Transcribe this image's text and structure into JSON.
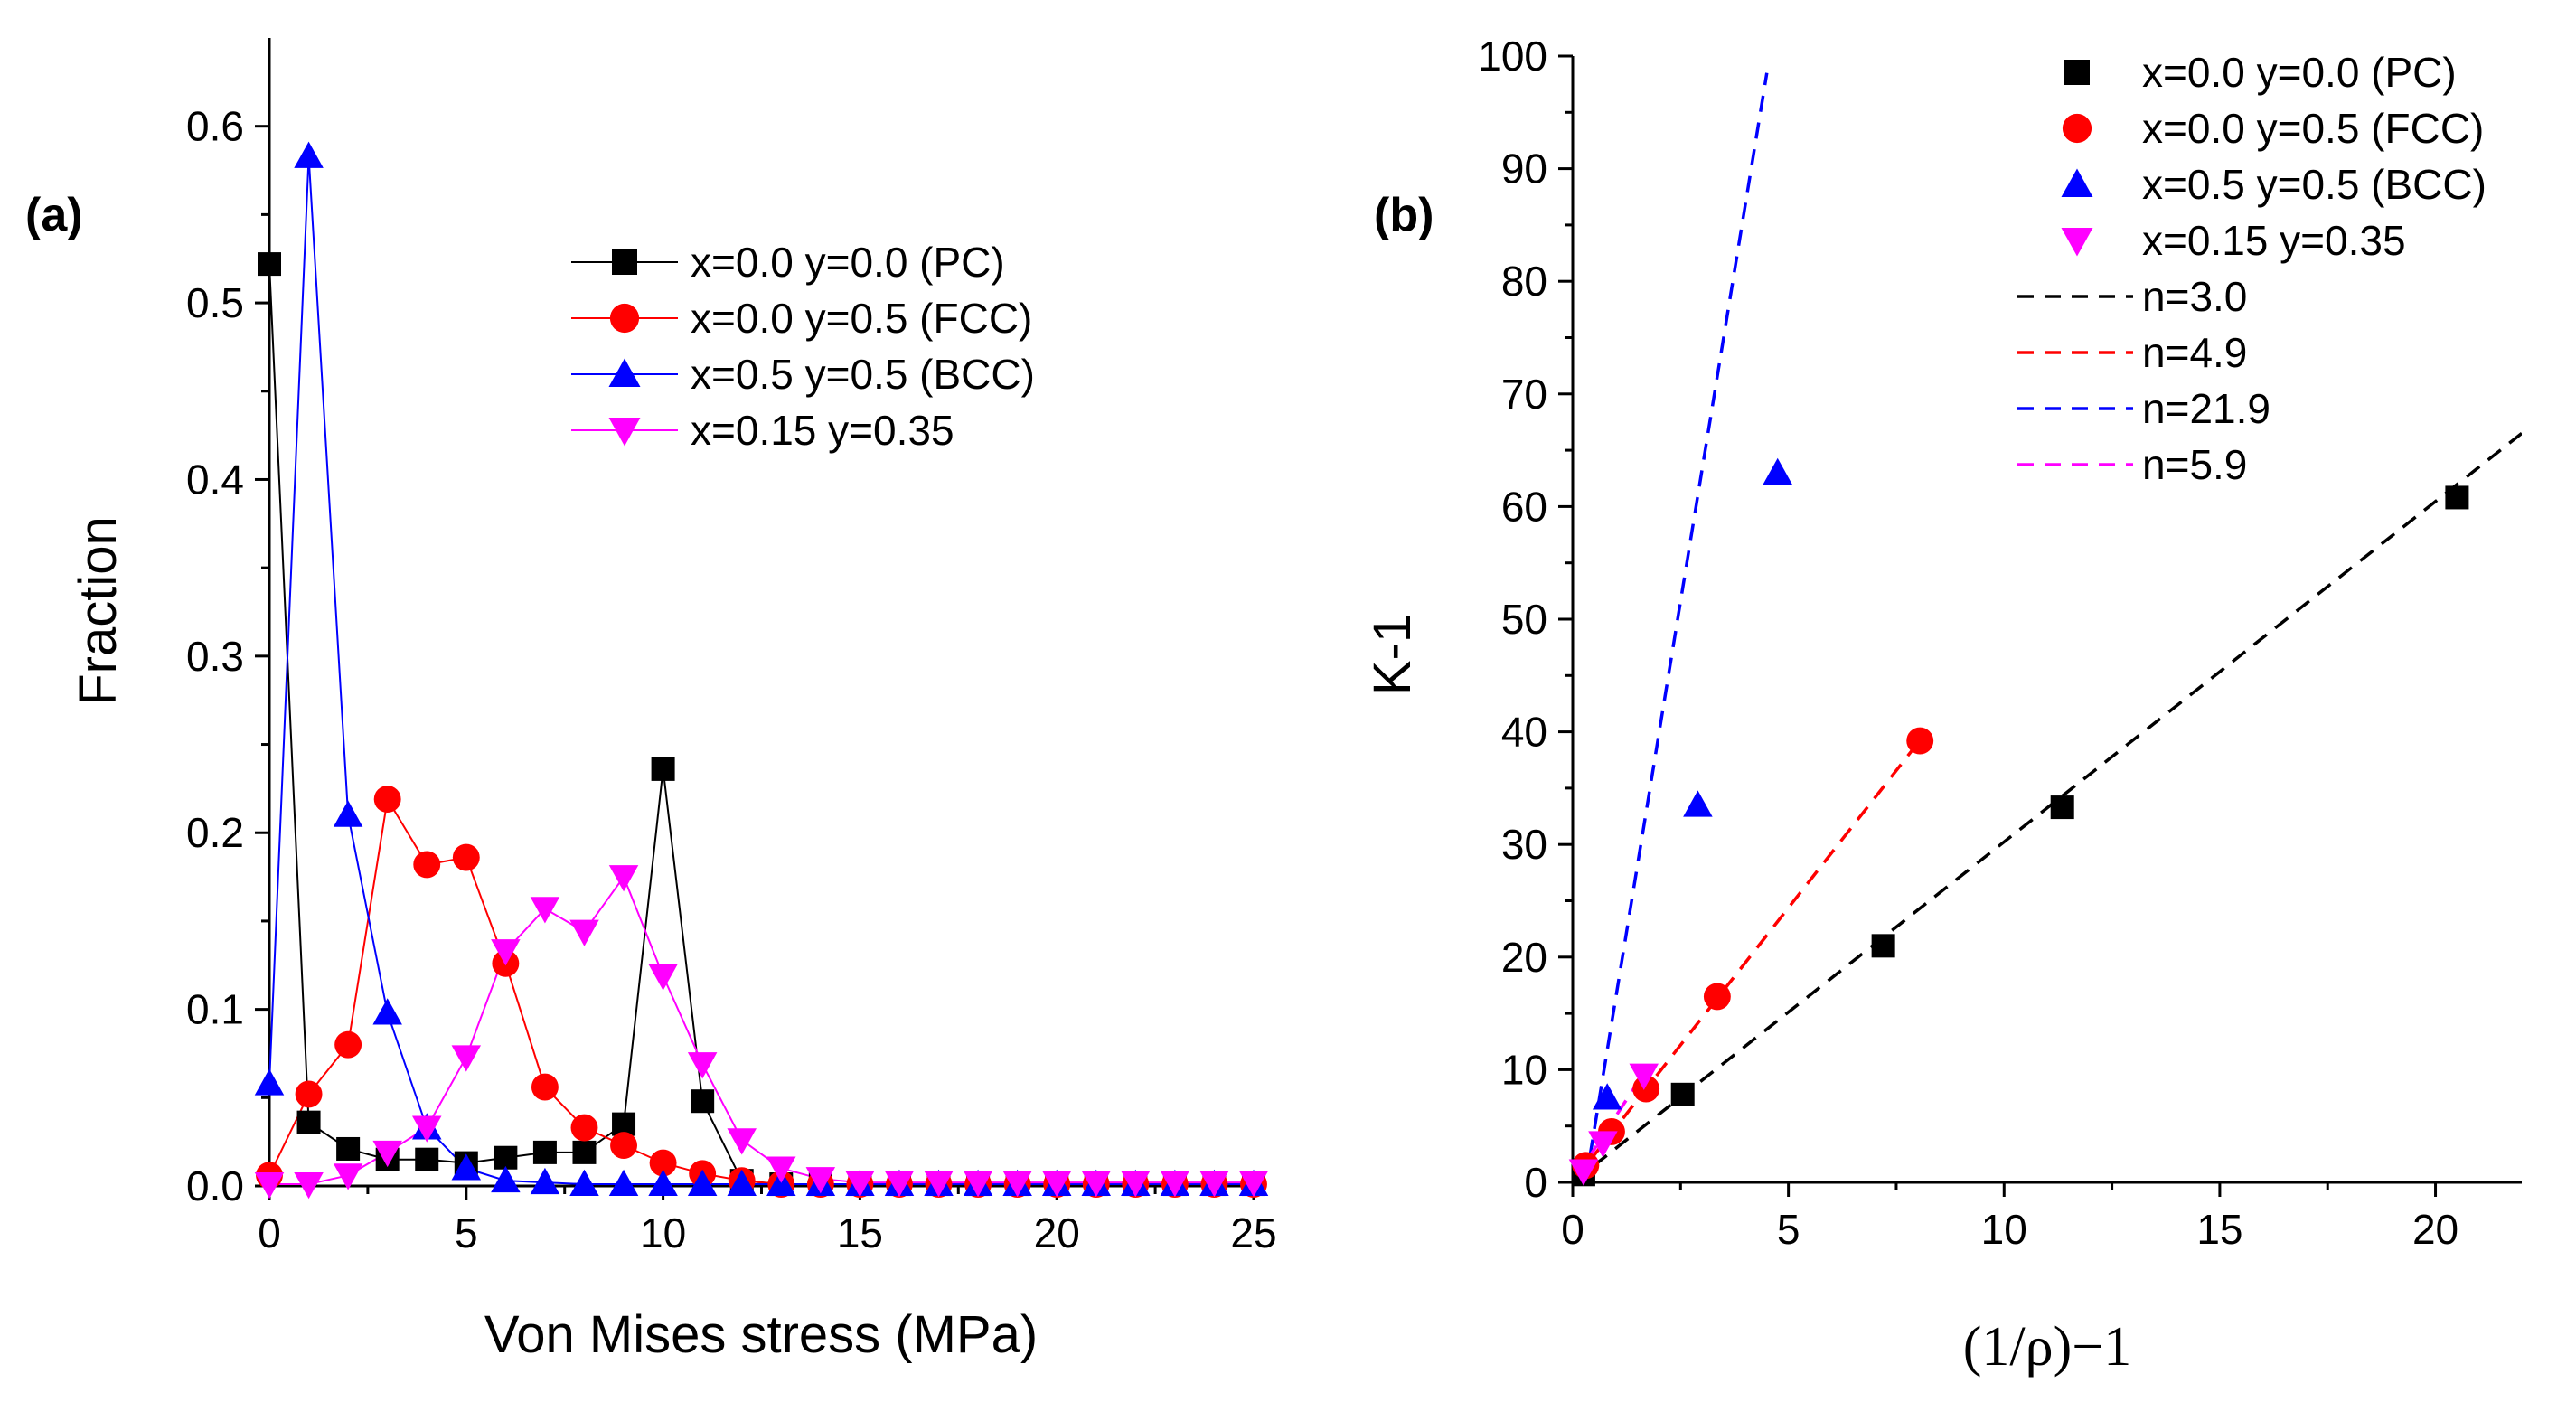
{
  "chart_data": [
    {
      "type": "line",
      "panel_label": "(a)",
      "title": "",
      "xlabel": "Von Mises stress (MPa)",
      "ylabel": "Fraction",
      "xlim": [
        0,
        25
      ],
      "ylim": [
        0,
        0.65
      ],
      "xticks": [
        0,
        5,
        10,
        15,
        20,
        25
      ],
      "yticks": [
        0.0,
        0.1,
        0.2,
        0.3,
        0.4,
        0.5,
        0.6
      ],
      "xtick_labels": [
        "0",
        "5",
        "10",
        "15",
        "20",
        "25"
      ],
      "ytick_labels": [
        "0.0",
        "0.1",
        "0.2",
        "0.3",
        "0.4",
        "0.5",
        "0.6"
      ],
      "legend_position": "top-right",
      "x": [
        0,
        1,
        2,
        3,
        4,
        5,
        6,
        7,
        8,
        9,
        10,
        11,
        12,
        13,
        14,
        15,
        16,
        17,
        18,
        19,
        20,
        21,
        22,
        23,
        24,
        25
      ],
      "series": [
        {
          "name": "x=0.0 y=0.0 (PC)",
          "color": "#000000",
          "marker": "square",
          "values": [
            0.522,
            0.036,
            0.021,
            0.015,
            0.015,
            0.013,
            0.016,
            0.019,
            0.019,
            0.035,
            0.236,
            0.048,
            0.003,
            0.001,
            0.001,
            0.001,
            0.001,
            0.001,
            0.001,
            0.001,
            0.001,
            0.001,
            0.001,
            0.001,
            0.001,
            0.001
          ]
        },
        {
          "name": "x=0.0 y=0.5 (FCC)",
          "color": "#ff0000",
          "marker": "circle",
          "values": [
            0.006,
            0.052,
            0.08,
            0.219,
            0.182,
            0.186,
            0.126,
            0.056,
            0.033,
            0.023,
            0.013,
            0.007,
            0.003,
            0.001,
            0.001,
            0.001,
            0.001,
            0.001,
            0.001,
            0.001,
            0.001,
            0.001,
            0.001,
            0.001,
            0.001,
            0.001
          ]
        },
        {
          "name": "x=0.5 y=0.5 (BCC)",
          "color": "#0000ff",
          "marker": "triangle-up",
          "values": [
            0.058,
            0.583,
            0.21,
            0.098,
            0.033,
            0.01,
            0.003,
            0.002,
            0.001,
            0.001,
            0.001,
            0.001,
            0.001,
            0.001,
            0.001,
            0.001,
            0.001,
            0.001,
            0.001,
            0.001,
            0.001,
            0.001,
            0.001,
            0.001,
            0.001,
            0.001
          ]
        },
        {
          "name": "x=0.15 y=0.35",
          "color": "#ff00ff",
          "marker": "triangle-down",
          "values": [
            0.001,
            0.001,
            0.006,
            0.019,
            0.033,
            0.073,
            0.133,
            0.157,
            0.144,
            0.175,
            0.119,
            0.069,
            0.026,
            0.01,
            0.004,
            0.002,
            0.002,
            0.002,
            0.002,
            0.002,
            0.002,
            0.002,
            0.002,
            0.002,
            0.002,
            0.002
          ]
        }
      ]
    },
    {
      "type": "scatter",
      "panel_label": "(b)",
      "title": "",
      "xlabel": "(1/ρ)−1",
      "ylabel": "K-1",
      "xlim": [
        0,
        22
      ],
      "ylim": [
        0,
        100
      ],
      "xticks": [
        0,
        5,
        10,
        15,
        20
      ],
      "yticks": [
        0,
        10,
        20,
        30,
        40,
        50,
        60,
        70,
        80,
        90,
        100
      ],
      "xtick_labels": [
        "0",
        "5",
        "10",
        "15",
        "20"
      ],
      "ytick_labels": [
        "0",
        "10",
        "20",
        "30",
        "40",
        "50",
        "60",
        "70",
        "80",
        "90",
        "100"
      ],
      "legend_position": "top-right",
      "series": [
        {
          "name": "x=0.0 y=0.0 (PC)",
          "color": "#000000",
          "marker": "square",
          "points": [
            [
              0.25,
              0.7
            ],
            [
              2.55,
              7.8
            ],
            [
              7.2,
              21.0
            ],
            [
              11.35,
              33.3
            ],
            [
              20.5,
              60.8
            ]
          ]
        },
        {
          "name": "x=0.0 y=0.5 (FCC)",
          "color": "#ff0000",
          "marker": "circle",
          "points": [
            [
              0.3,
              1.5
            ],
            [
              0.9,
              4.5
            ],
            [
              1.7,
              8.3
            ],
            [
              3.35,
              16.5
            ],
            [
              8.05,
              39.2
            ]
          ]
        },
        {
          "name": "x=0.5 y=0.5 (BCC)",
          "color": "#0000ff",
          "marker": "triangle-up",
          "points": [
            [
              0.8,
              7.5
            ],
            [
              2.9,
              33.5
            ],
            [
              4.75,
              63.0
            ]
          ]
        },
        {
          "name": "x=0.15 y=0.35",
          "color": "#ff00ff",
          "marker": "triangle-down",
          "points": [
            [
              0.25,
              1.0
            ],
            [
              0.7,
              3.5
            ],
            [
              1.65,
              9.5
            ]
          ]
        }
      ],
      "fits": [
        {
          "name": "n=3.0",
          "color": "#000000",
          "from": [
            0,
            0
          ],
          "to": [
            22,
            66.5
          ]
        },
        {
          "name": "n=4.9",
          "color": "#ff0000",
          "from": [
            0,
            0
          ],
          "to": [
            8.0,
            39.0
          ]
        },
        {
          "name": "n=21.9",
          "color": "#0000ff",
          "from": [
            0.3,
            0
          ],
          "to": [
            4.5,
            98.5
          ]
        },
        {
          "name": "n=5.9",
          "color": "#ff00ff",
          "from": [
            0,
            0
          ],
          "to": [
            1.7,
            10.0
          ]
        }
      ]
    }
  ]
}
